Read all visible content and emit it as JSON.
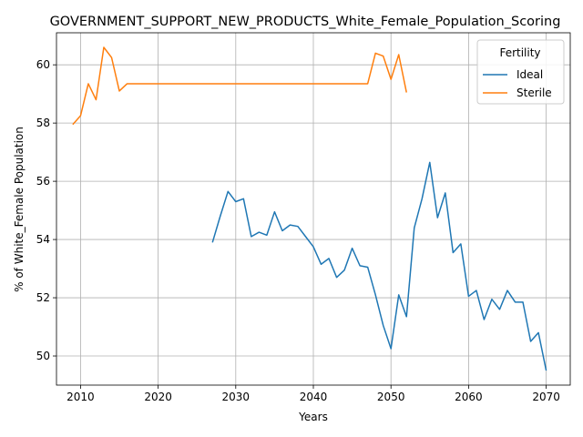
{
  "chart_data": {
    "type": "line",
    "title": "GOVERNMENT_SUPPORT_NEW_PRODUCTS_White_Female_Population_Scoring",
    "xlabel": "Years",
    "ylabel": "% of White_Female Population",
    "xlim": [
      2006.9,
      2073.1
    ],
    "ylim": [
      49.0,
      61.1
    ],
    "xticks": [
      2010,
      2020,
      2030,
      2040,
      2050,
      2060,
      2070
    ],
    "yticks": [
      50,
      52,
      54,
      56,
      58,
      60
    ],
    "grid": true,
    "legend": {
      "title": "Fertility",
      "placement": "top-right"
    },
    "series": [
      {
        "name": "Ideal",
        "color": "#1f77b4",
        "x": [
          2027,
          2028,
          2029,
          2030,
          2031,
          2032,
          2033,
          2034,
          2035,
          2036,
          2037,
          2038,
          2039,
          2040,
          2041,
          2042,
          2043,
          2044,
          2045,
          2046,
          2047,
          2048,
          2049,
          2050,
          2051,
          2052,
          2053,
          2054,
          2055,
          2056,
          2057,
          2058,
          2059,
          2060,
          2061,
          2062,
          2063,
          2064,
          2065,
          2066,
          2067,
          2068,
          2069,
          2070
        ],
        "y": [
          53.9,
          54.8,
          55.65,
          55.3,
          55.4,
          54.1,
          54.25,
          54.15,
          54.95,
          54.3,
          54.5,
          54.45,
          54.1,
          53.75,
          53.15,
          53.35,
          52.7,
          52.95,
          53.7,
          53.1,
          53.05,
          52.1,
          51.05,
          50.25,
          52.1,
          51.35,
          54.4,
          55.4,
          56.65,
          54.75,
          55.6,
          53.55,
          53.85,
          52.05,
          52.25,
          51.25,
          51.95,
          51.6,
          52.25,
          51.85,
          51.85,
          50.5,
          50.8,
          49.5
        ]
      },
      {
        "name": "Sterile",
        "color": "#ff7f0e",
        "x": [
          2009,
          2010,
          2011,
          2012,
          2013,
          2014,
          2015,
          2016,
          2017,
          2018,
          2019,
          2020,
          2021,
          2022,
          2023,
          2024,
          2025,
          2026,
          2027,
          2028,
          2029,
          2030,
          2031,
          2032,
          2033,
          2034,
          2035,
          2036,
          2037,
          2038,
          2039,
          2040,
          2041,
          2042,
          2043,
          2044,
          2045,
          2046,
          2047,
          2048,
          2049,
          2050,
          2051,
          2052
        ],
        "y": [
          57.95,
          58.25,
          59.35,
          58.8,
          60.6,
          60.25,
          59.1,
          59.35,
          59.35,
          59.35,
          59.35,
          59.35,
          59.35,
          59.35,
          59.35,
          59.35,
          59.35,
          59.35,
          59.35,
          59.35,
          59.35,
          59.35,
          59.35,
          59.35,
          59.35,
          59.35,
          59.35,
          59.35,
          59.35,
          59.35,
          59.35,
          59.35,
          59.35,
          59.35,
          59.35,
          59.35,
          59.35,
          59.35,
          59.35,
          60.4,
          60.3,
          59.5,
          60.35,
          59.05
        ]
      }
    ]
  }
}
